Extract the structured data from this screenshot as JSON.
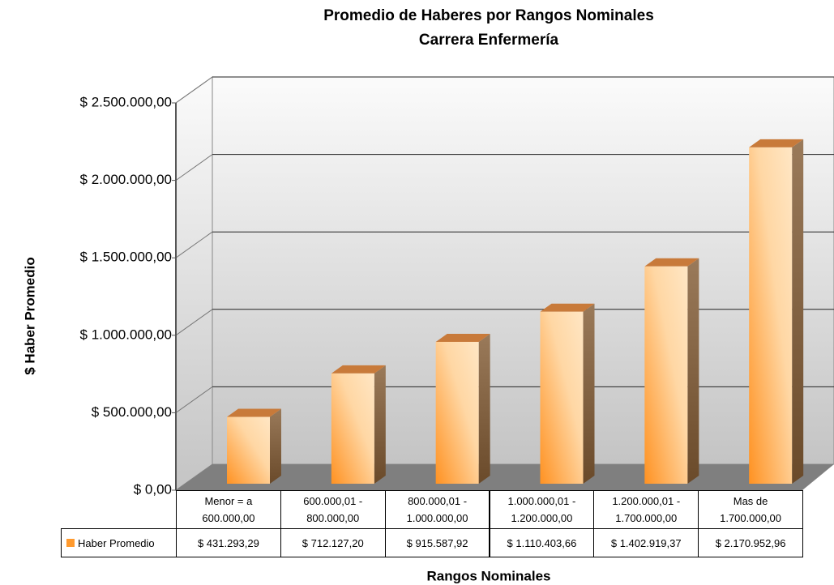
{
  "chart_data": {
    "type": "bar3d",
    "title": "Promedio de Haberes por Rangos Nominales",
    "subtitle": "Carrera Enfermería",
    "y_label": "$ Haber Promedio",
    "x_label": "Rangos Nominales",
    "categories": [
      "Menor = a 600.000,00",
      "600.000,01 - 800.000,00",
      "800.000,01 - 1.000.000,00",
      "1.000.000,01 - 1.200.000,00",
      "1.200.000,01 - 1.700.000,00",
      "Mas de 1.700.000,00"
    ],
    "series": [
      {
        "name": "Haber Promedio",
        "color": "#ff9a2e",
        "values": [
          431293.29,
          712127.2,
          915587.92,
          1110403.66,
          1402919.37,
          2170952.96
        ],
        "value_labels": [
          "$ 431.293,29",
          "$ 712.127,20",
          "$ 915.587,92",
          "$ 1.110.403,66",
          "$ 1.402.919,37",
          "$ 2.170.952,96"
        ]
      }
    ],
    "ylim": [
      0,
      2500000
    ],
    "yticks": [
      {
        "value": 0,
        "label": "$ 0,00"
      },
      {
        "value": 500000,
        "label": "$ 500.000,00"
      },
      {
        "value": 1000000,
        "label": "$ 1.000.000,00"
      },
      {
        "value": 1500000,
        "label": "$ 1.500.000,00"
      },
      {
        "value": 2000000,
        "label": "$ 2.000.000,00"
      },
      {
        "value": 2500000,
        "label": "$ 2.500.000,00"
      }
    ],
    "grid": true
  }
}
